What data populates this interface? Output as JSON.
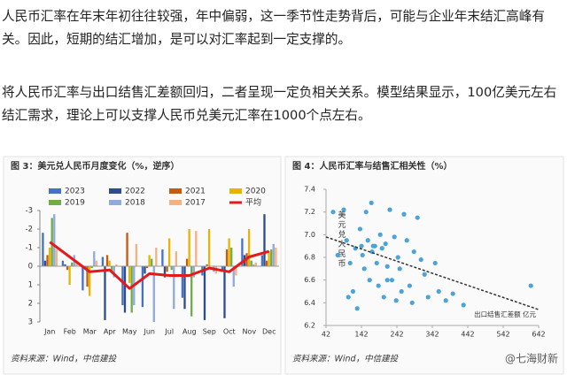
{
  "paragraphs": [
    "人民币汇率在年末年初往往较强，年中偏弱，这一季节性走势背后，可能与企业年末结汇高峰有关。因此，短期的结汇增加，是可以对汇率起到一定支撑的。",
    "将人民币汇率与出口结售汇差额回归，二者呈现一定负相关关系。模型结果显示，100亿美元左右结汇需求，理论上可以支撑人民币兑美元汇率在1000个点左右。"
  ],
  "chart_data": [
    {
      "type": "bar",
      "title": "图 3：美元兑人民币月度变化（%，逆序）",
      "source": "资料来源：Wind，中信建投",
      "categories": [
        "Jan",
        "Feb",
        "Mar",
        "Apr",
        "May",
        "Jun",
        "Jul",
        "Aug",
        "Sep",
        "Oct",
        "Nov",
        "Dec"
      ],
      "ylim": [
        -3,
        3
      ],
      "inverted": true,
      "yticks": [
        -3,
        -2,
        -1,
        0,
        1,
        2,
        3
      ],
      "series": [
        {
          "name": "2023",
          "color": "#4472c4",
          "values": [
            -1.8,
            -0.3,
            1.3,
            -0.5,
            2.1,
            2.2,
            -0.9,
            1.7,
            0.5,
            0.3,
            -1.5,
            -0.6
          ]
        },
        {
          "name": "2022",
          "color": "#2e4d8c",
          "values": [
            -0.3,
            -0.1,
            0.1,
            2.9,
            2.5,
            0.4,
            0.6,
            2.3,
            2.9,
            2.8,
            -0.6,
            -2.8
          ]
        },
        {
          "name": "2021",
          "color": "#c55a11",
          "values": [
            -0.6,
            0.2,
            1.1,
            -0.6,
            -1.8,
            0.1,
            0.3,
            -0.4,
            -0.1,
            -0.9,
            -0.7,
            -0.3
          ]
        },
        {
          "name": "2020",
          "color": "#e8b400",
          "values": [
            -1.0,
            1.0,
            1.6,
            -0.3,
            0.9,
            -0.6,
            -1.5,
            -2.0,
            -2.0,
            -1.5,
            -2.0,
            -0.8
          ]
        },
        {
          "name": "2019",
          "color": "#70ad47",
          "values": [
            -2.6,
            -0.2,
            0.1,
            0.3,
            2.5,
            -0.4,
            0.2,
            2.7,
            0.0,
            -1.0,
            -0.3,
            -0.9
          ]
        },
        {
          "name": "2018",
          "color": "#8faadc",
          "values": [
            -2.8,
            -0.6,
            -0.8,
            0.6,
            2.1,
            3.0,
            2.3,
            0.6,
            0.3,
            1.1,
            -0.1,
            -1.2
          ]
        },
        {
          "name": "2017",
          "color": "#f4b183",
          "values": [
            -0.9,
            -0.3,
            -0.3,
            -0.1,
            -1.2,
            -1.0,
            -0.8,
            -1.9,
            0.4,
            0.5,
            -0.2,
            -1.0
          ]
        }
      ],
      "line_series": [
        {
          "name": "平均",
          "color": "#e31a1c",
          "values": [
            -1.3,
            -0.5,
            0.3,
            0.2,
            1.2,
            0.4,
            0.5,
            0.5,
            0.1,
            0.3,
            -0.5,
            -0.8
          ]
        }
      ]
    },
    {
      "type": "scatter",
      "title": "图 4：人民币汇率与结售汇相关性（%）",
      "source": "资料来源：Wind，中信建投",
      "ylabel": "美元兑人民币",
      "xlabel": "出口结售汇差额 亿元",
      "color": "#4ba3d9",
      "xlim": [
        42,
        642
      ],
      "xticks": [
        42,
        142,
        242,
        342,
        442,
        542,
        642
      ],
      "ylim": [
        6.2,
        7.4
      ],
      "yticks": [
        6.2,
        6.4,
        6.6,
        6.8,
        {
          "value": 7,
          "label": "7.0"
        },
        7.2,
        7.4
      ],
      "x": [
        62,
        75,
        92,
        100,
        110,
        118,
        125,
        130,
        138,
        142,
        145,
        150,
        155,
        160,
        165,
        170,
        172,
        180,
        185,
        190,
        195,
        200,
        205,
        210,
        215,
        222,
        228,
        235,
        240,
        245,
        250,
        255,
        262,
        270,
        278,
        285,
        290,
        300,
        310,
        320,
        330,
        350,
        360,
        380,
        400,
        430,
        620,
        105,
        175,
        215
      ],
      "values": [
        7.2,
        6.82,
        7.22,
        6.95,
        6.75,
        6.5,
        6.88,
        6.35,
        7.05,
        6.9,
        6.82,
        6.7,
        7.2,
        6.95,
        6.6,
        7.28,
        6.85,
        6.9,
        6.75,
        6.55,
        7.0,
        6.88,
        6.45,
        6.92,
        6.72,
        7.22,
        6.6,
        6.98,
        6.42,
        6.8,
        6.7,
        6.5,
        7.18,
        6.95,
        6.55,
        6.4,
        6.85,
        7.15,
        6.78,
        6.65,
        6.45,
        6.75,
        6.5,
        6.42,
        6.48,
        6.38,
        6.55,
        6.45,
        6.9,
        6.6
      ],
      "trendline": {
        "x": [
          42,
          642
        ],
        "values": [
          6.98,
          6.34
        ]
      }
    }
  ],
  "watermark": "@七海财新"
}
